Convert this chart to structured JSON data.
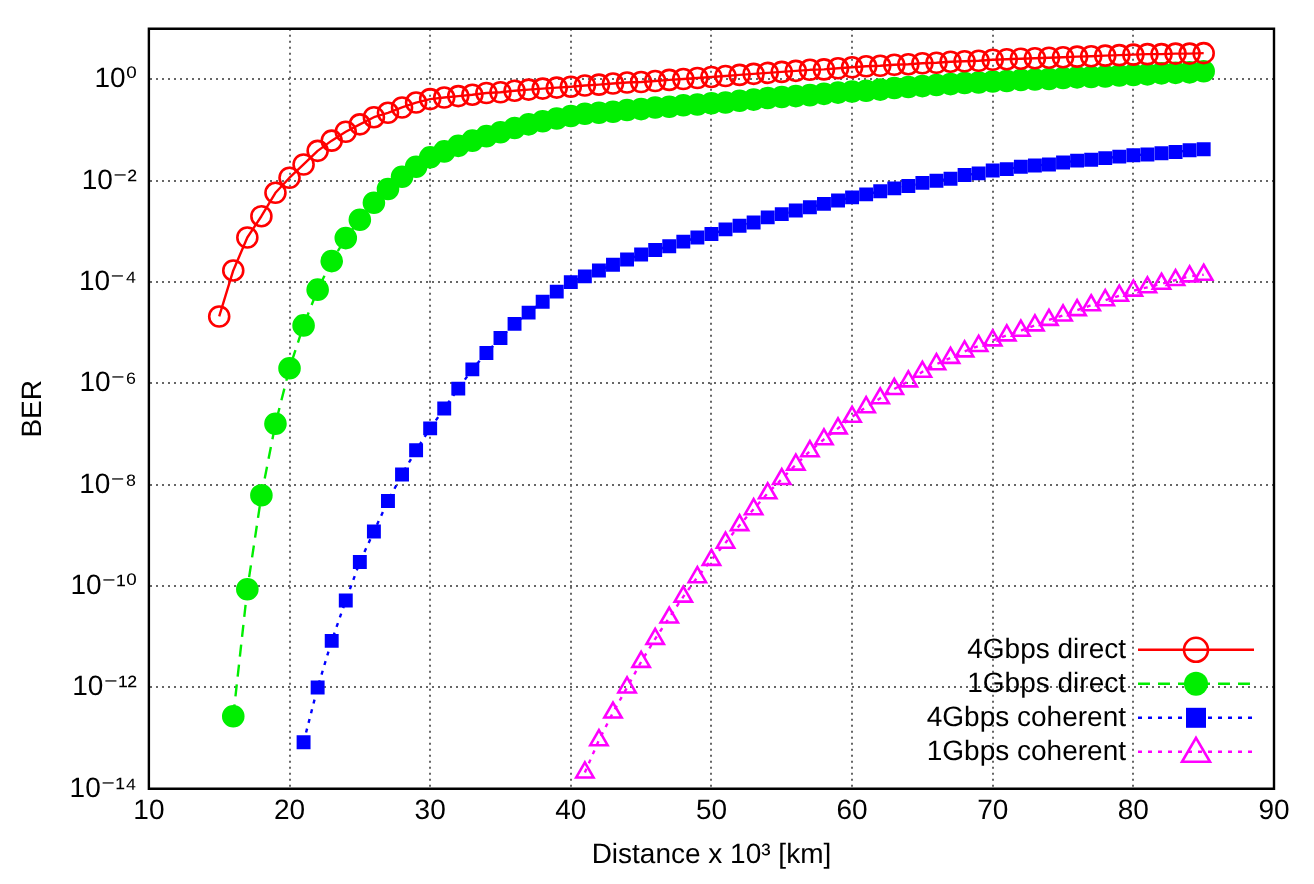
{
  "chart_data": {
    "type": "line",
    "xlabel": "Distance x 10³ [km]",
    "ylabel": "BER",
    "log": "y",
    "xlim": [
      10,
      90
    ],
    "xticks": [
      10,
      20,
      30,
      40,
      50,
      60,
      70,
      80,
      90
    ],
    "ylim": [
      1e-14,
      10
    ],
    "yticks": [
      {
        "value": 1e-14,
        "label": "10⁻¹⁴"
      },
      {
        "value": 1e-12,
        "label": "10⁻¹²"
      },
      {
        "value": 1e-10,
        "label": "10⁻¹⁰"
      },
      {
        "value": 1e-08,
        "label": "10⁻⁸"
      },
      {
        "value": 1e-06,
        "label": "10⁻⁶"
      },
      {
        "value": 0.0001,
        "label": "10⁻⁴"
      },
      {
        "value": 0.01,
        "label": "10⁻²"
      },
      {
        "value": 1,
        "label": "10⁰"
      },
      {
        "value": 10,
        "label": null
      }
    ],
    "grid": true,
    "legend": "bottom right",
    "series": [
      {
        "name": "4Gbps direct",
        "color": "#ff0000",
        "marker": "circle",
        "line_style": "solid",
        "x": [
          15,
          16,
          17,
          18,
          19,
          20,
          21,
          22,
          23,
          24,
          25,
          26,
          27,
          28,
          29,
          30,
          31,
          32,
          33,
          34,
          35,
          36,
          37,
          38,
          39,
          40,
          41,
          42,
          43,
          44,
          45,
          46,
          47,
          48,
          49,
          50,
          51,
          52,
          53,
          54,
          55,
          56,
          57,
          58,
          59,
          60,
          61,
          62,
          63,
          64,
          65,
          66,
          67,
          68,
          69,
          70,
          71,
          72,
          73,
          74,
          75,
          76,
          77,
          78,
          79,
          80,
          81,
          82,
          83,
          84,
          85
        ],
        "values": [
          2.1e-05,
          0.00017,
          0.00076,
          0.002,
          0.0058,
          0.0115,
          0.021,
          0.039,
          0.062,
          0.093,
          0.13,
          0.18,
          0.22,
          0.28,
          0.35,
          0.41,
          0.44,
          0.47,
          0.5,
          0.54,
          0.56,
          0.6,
          0.63,
          0.66,
          0.69,
          0.72,
          0.76,
          0.79,
          0.83,
          0.87,
          0.89,
          0.93,
          0.98,
          1.02,
          1.07,
          1.12,
          1.17,
          1.23,
          1.29,
          1.35,
          1.41,
          1.48,
          1.55,
          1.58,
          1.66,
          1.74,
          1.82,
          1.86,
          1.95,
          2.0,
          2.09,
          2.14,
          2.24,
          2.29,
          2.34,
          2.45,
          2.51,
          2.57,
          2.63,
          2.69,
          2.75,
          2.82,
          2.88,
          2.95,
          3.02,
          3.09,
          3.16,
          3.16,
          3.24,
          3.24,
          3.31
        ]
      },
      {
        "name": "1Gbps direct",
        "color": "#00ee00",
        "marker": "circle",
        "line_style": "dashed",
        "x": [
          16,
          17,
          18,
          19,
          20,
          21,
          22,
          23,
          24,
          25,
          26,
          27,
          28,
          29,
          30,
          31,
          32,
          33,
          34,
          35,
          36,
          37,
          38,
          39,
          40,
          41,
          42,
          43,
          44,
          45,
          46,
          47,
          48,
          49,
          50,
          51,
          52,
          53,
          54,
          55,
          56,
          57,
          58,
          59,
          60,
          61,
          62,
          63,
          64,
          65,
          66,
          67,
          68,
          69,
          70,
          71,
          72,
          73,
          74,
          75,
          76,
          77,
          78,
          79,
          80,
          81,
          82,
          83,
          84,
          85
        ],
        "values": [
          2.7e-13,
          8.7e-11,
          6.2e-09,
          1.6e-07,
          2e-06,
          1.4e-05,
          7.1e-05,
          0.00026,
          0.00074,
          0.0017,
          0.0037,
          0.0069,
          0.012,
          0.019,
          0.029,
          0.038,
          0.049,
          0.062,
          0.076,
          0.091,
          0.11,
          0.13,
          0.15,
          0.17,
          0.19,
          0.21,
          0.22,
          0.23,
          0.25,
          0.26,
          0.28,
          0.29,
          0.31,
          0.32,
          0.34,
          0.35,
          0.38,
          0.4,
          0.43,
          0.45,
          0.47,
          0.49,
          0.52,
          0.55,
          0.58,
          0.6,
          0.63,
          0.68,
          0.71,
          0.74,
          0.78,
          0.81,
          0.85,
          0.87,
          0.91,
          0.93,
          0.98,
          1.0,
          1.02,
          1.07,
          1.1,
          1.12,
          1.15,
          1.2,
          1.23,
          1.26,
          1.32,
          1.35,
          1.38,
          1.45
        ]
      },
      {
        "name": "4Gbps coherent",
        "color": "#0000ff",
        "marker": "square",
        "line_style": "dotted",
        "x": [
          21,
          22,
          23,
          24,
          25,
          26,
          27,
          28,
          29,
          30,
          31,
          32,
          33,
          34,
          35,
          36,
          37,
          38,
          39,
          40,
          41,
          42,
          43,
          44,
          45,
          46,
          47,
          48,
          49,
          50,
          51,
          52,
          53,
          54,
          55,
          56,
          57,
          58,
          59,
          60,
          61,
          62,
          63,
          64,
          65,
          66,
          67,
          68,
          69,
          70,
          71,
          72,
          73,
          74,
          75,
          76,
          77,
          78,
          79,
          80,
          81,
          82,
          83,
          84,
          85
        ],
        "values": [
          8.3e-14,
          1e-12,
          8.3e-12,
          5.2e-11,
          3e-10,
          1.2e-09,
          4.8e-09,
          1.6e-08,
          4.8e-08,
          1.3e-07,
          3.2e-07,
          7.9e-07,
          1.9e-06,
          4e-06,
          7.9e-06,
          1.5e-05,
          2.5e-05,
          4.1e-05,
          6.5e-05,
          0.0001,
          0.00013,
          0.00017,
          0.00022,
          0.00028,
          0.00035,
          0.00043,
          0.00051,
          0.00063,
          0.00076,
          0.00089,
          0.0011,
          0.0013,
          0.0015,
          0.0019,
          0.0022,
          0.0026,
          0.003,
          0.0035,
          0.0041,
          0.0047,
          0.0054,
          0.0062,
          0.0071,
          0.0079,
          0.0091,
          0.01,
          0.011,
          0.013,
          0.014,
          0.016,
          0.017,
          0.019,
          0.02,
          0.021,
          0.023,
          0.025,
          0.026,
          0.028,
          0.03,
          0.032,
          0.033,
          0.035,
          0.037,
          0.04,
          0.042
        ]
      },
      {
        "name": "1Gbps coherent",
        "color": "#ff00ff",
        "marker": "triangle",
        "line_style": "dotted",
        "x": [
          41,
          42,
          43,
          44,
          45,
          46,
          47,
          48,
          49,
          50,
          51,
          52,
          53,
          54,
          55,
          56,
          57,
          58,
          59,
          60,
          61,
          62,
          63,
          64,
          65,
          66,
          67,
          68,
          69,
          70,
          71,
          72,
          73,
          74,
          75,
          76,
          77,
          78,
          79,
          80,
          81,
          82,
          83,
          84,
          85
        ],
        "values": [
          2.1e-14,
          9.1e-14,
          3.2e-13,
          1e-12,
          3.2e-12,
          9.1e-12,
          2.4e-11,
          6.2e-11,
          1.5e-10,
          3.3e-10,
          7.2e-10,
          1.6e-09,
          3.3e-09,
          6.8e-09,
          1.3e-08,
          2.5e-08,
          4.6e-08,
          7.9e-08,
          1.3e-07,
          2.2e-07,
          3.4e-07,
          5.1e-07,
          7.8e-07,
          1.1e-06,
          1.7e-06,
          2.4e-06,
          3.2e-06,
          4.3e-06,
          5.5e-06,
          7.1e-06,
          8.9e-06,
          1.1e-05,
          1.4e-05,
          1.8e-05,
          2.2e-05,
          2.8e-05,
          3.5e-05,
          4.4e-05,
          5.4e-05,
          6.8e-05,
          7.9e-05,
          9.3e-05,
          0.00011,
          0.00013,
          0.00014
        ]
      }
    ]
  }
}
